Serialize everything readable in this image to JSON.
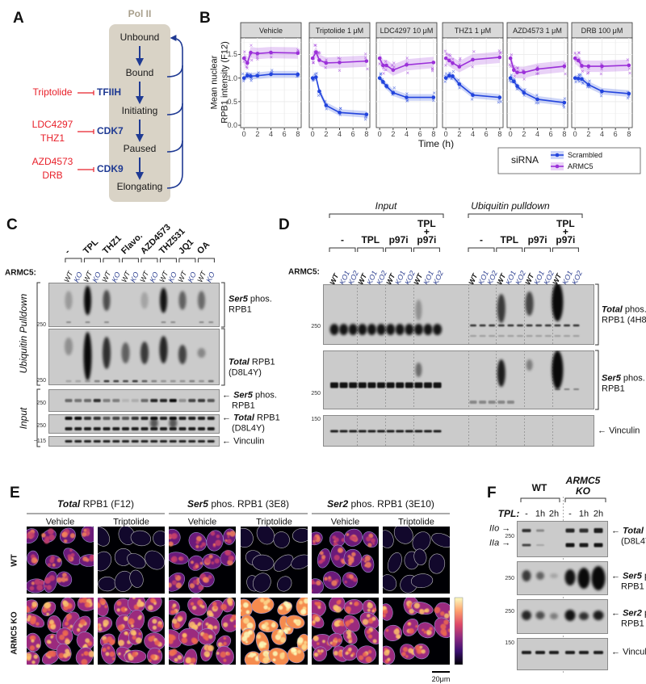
{
  "panels": {
    "A": {
      "letter": "A",
      "title": "Pol II",
      "states": [
        "Unbound",
        "Bound",
        "Initiating",
        "Paused",
        "Elongating"
      ],
      "inhibitors": [
        {
          "drugs": [
            "Triptolide"
          ],
          "target": "TFIIH"
        },
        {
          "drugs": [
            "LDC4297",
            "THZ1"
          ],
          "target": "CDK7"
        },
        {
          "drugs": [
            "AZD4573",
            "DRB"
          ],
          "target": "CDK9"
        }
      ],
      "colors": {
        "drug": "#e8202a",
        "target": "#1f3a93",
        "box": "#d9d3c6"
      }
    },
    "B": {
      "letter": "B",
      "ytick_labels": [
        "0.0",
        "0.5",
        "1.0",
        "1.5"
      ],
      "xtick_labels": [
        "0",
        "2",
        "4",
        "6",
        "8"
      ],
      "ylabel_lines": [
        "Mean nuclear",
        "RPB1 intensity (F12)"
      ],
      "xlabel": "Time (h)",
      "legend": {
        "title": "siRNA",
        "items": [
          "Scrambled",
          "ARMC5"
        ]
      }
    },
    "C": {
      "letter": "C",
      "treatments": [
        "-",
        "TPL",
        "THZ1",
        "Flavo.",
        "AZD4573",
        "THZ531",
        "JQ1",
        "OA"
      ],
      "genotype_label": "ARMC5:",
      "lanes": [
        "WT",
        "KO"
      ],
      "sections": [
        "Ubiquitin Pulldown",
        "Input"
      ],
      "markers": [
        "250",
        "250",
        "250",
        "250",
        "~115"
      ],
      "right_labels": [
        {
          "bold": "Ser5",
          "rest": " phos.",
          "line2": "RPB1"
        },
        {
          "bold": "Total",
          "rest": " RPB1",
          "line2": "(D8L4Y)"
        },
        {
          "bold": "Ser5",
          "rest": " phos.",
          "line2": "RPB1"
        },
        {
          "bold": "Total",
          "rest": " RPB1",
          "line2": "(D8L4Y)"
        },
        {
          "bold": "",
          "rest": "Vinculin",
          "line2": ""
        }
      ]
    },
    "D": {
      "letter": "D",
      "sections": [
        "Input",
        "Ubiquitin pulldown"
      ],
      "groups": [
        [
          "-"
        ],
        [
          "TPL"
        ],
        [
          "p97i"
        ],
        [
          "TPL",
          "+",
          "p97i"
        ]
      ],
      "genotype_label": "ARMC5:",
      "lanes": [
        "WT",
        "KO1",
        "KO2"
      ],
      "markers": [
        "250",
        "250",
        "150"
      ],
      "right_labels": [
        {
          "bold": "Total",
          "rest": " phos.",
          "line2": "RPB1 (4H8)"
        },
        {
          "bold": "Ser5",
          "rest": " phos.",
          "line2": "RPB1"
        },
        {
          "bold": "",
          "rest": "Vinculin",
          "line2": ""
        }
      ]
    },
    "E": {
      "letter": "E",
      "groups": [
        {
          "bold": "Total",
          "rest": " RPB1 (F12)"
        },
        {
          "bold": "Ser5",
          "rest": " phos. RPB1 (3E8)"
        },
        {
          "bold": "Ser2",
          "rest": " phos. RPB1 (3E10)"
        }
      ],
      "conditions": [
        "Vehicle",
        "Triptolide"
      ],
      "rows": [
        "WT",
        "ARMC5 KO"
      ],
      "scale_bar": "20μm",
      "colormap": [
        "#000004",
        "#3b0f70",
        "#8c2981",
        "#de4968",
        "#fe9f6d",
        "#fcfdbf"
      ]
    },
    "F": {
      "letter": "F",
      "groups": [
        [
          "WT"
        ],
        [
          "ARMC5",
          "KO"
        ]
      ],
      "tpl_label": "TPL:",
      "timepoints": [
        "-",
        "1h",
        "2h"
      ],
      "forms": [
        "IIo",
        "IIa"
      ],
      "markers": [
        "250",
        "250",
        "250",
        "150"
      ],
      "right_labels": [
        {
          "bold": "Total",
          "rest": " RPB1",
          "line2": "(D8L4Y)"
        },
        {
          "bold": "Ser5",
          "rest": " phos.",
          "line2": "RPB1"
        },
        {
          "bold": "Ser2",
          "rest": " phos.",
          "line2": "RPB1"
        },
        {
          "bold": "",
          "rest": "Vinculin",
          "line2": ""
        }
      ]
    }
  },
  "chart_data": {
    "type": "line",
    "facets": [
      {
        "title": "Vehicle",
        "series": [
          {
            "name": "Scrambled",
            "values": [
              1.0,
              1.05,
              1.04,
              1.05,
              1.08,
              1.08
            ]
          },
          {
            "name": "ARMC5",
            "values": [
              1.42,
              1.32,
              1.54,
              1.52,
              1.54,
              1.53
            ]
          }
        ]
      },
      {
        "title": "Triptolide 1 μM",
        "series": [
          {
            "name": "Scrambled",
            "values": [
              1.0,
              1.02,
              0.72,
              0.42,
              0.27,
              0.23
            ]
          },
          {
            "name": "ARMC5",
            "values": [
              1.42,
              1.55,
              1.38,
              1.32,
              1.33,
              1.36
            ]
          }
        ]
      },
      {
        "title": "LDC4297 10 μM",
        "series": [
          {
            "name": "Scrambled",
            "values": [
              1.0,
              0.92,
              0.83,
              0.69,
              0.59,
              0.59
            ]
          },
          {
            "name": "ARMC5",
            "values": [
              1.42,
              1.27,
              1.27,
              1.17,
              1.28,
              1.33
            ]
          }
        ]
      },
      {
        "title": "THZ1 1 μM",
        "series": [
          {
            "name": "Scrambled",
            "values": [
              1.0,
              1.05,
              1.04,
              0.87,
              0.64,
              0.59
            ]
          },
          {
            "name": "ARMC5",
            "values": [
              1.42,
              1.37,
              1.32,
              1.24,
              1.39,
              1.44
            ]
          }
        ]
      },
      {
        "title": "AZD4573 1 μM",
        "series": [
          {
            "name": "Scrambled",
            "values": [
              1.0,
              0.93,
              0.83,
              0.69,
              0.55,
              0.48
            ]
          },
          {
            "name": "ARMC5",
            "values": [
              1.42,
              1.17,
              1.12,
              1.12,
              1.19,
              1.25
            ]
          }
        ]
      },
      {
        "title": "DRB 100 μM",
        "series": [
          {
            "name": "Scrambled",
            "values": [
              1.0,
              0.99,
              0.98,
              0.86,
              0.72,
              0.67
            ]
          },
          {
            "name": "ARMC5",
            "values": [
              1.42,
              1.37,
              1.26,
              1.25,
              1.25,
              1.27
            ]
          }
        ]
      }
    ],
    "x": [
      0,
      0.5,
      1,
      2,
      4,
      8
    ],
    "xlabel": "Time (h)",
    "ylabel": "Mean nuclear RPB1 intensity (F12)",
    "xlim": [
      0,
      8
    ],
    "ylim": [
      0,
      1.85
    ],
    "xticks": [
      0,
      2,
      4,
      6,
      8
    ],
    "yticks": [
      0,
      0.5,
      1.0,
      1.5
    ],
    "grid": true,
    "legend": {
      "title": "siRNA",
      "position": "bottom-right"
    },
    "colors": {
      "Scrambled": "#2244dd",
      "ARMC5": "#9b30d9"
    },
    "ci_halfwidth": {
      "Scrambled": 0.07,
      "ARMC5": 0.12
    }
  }
}
